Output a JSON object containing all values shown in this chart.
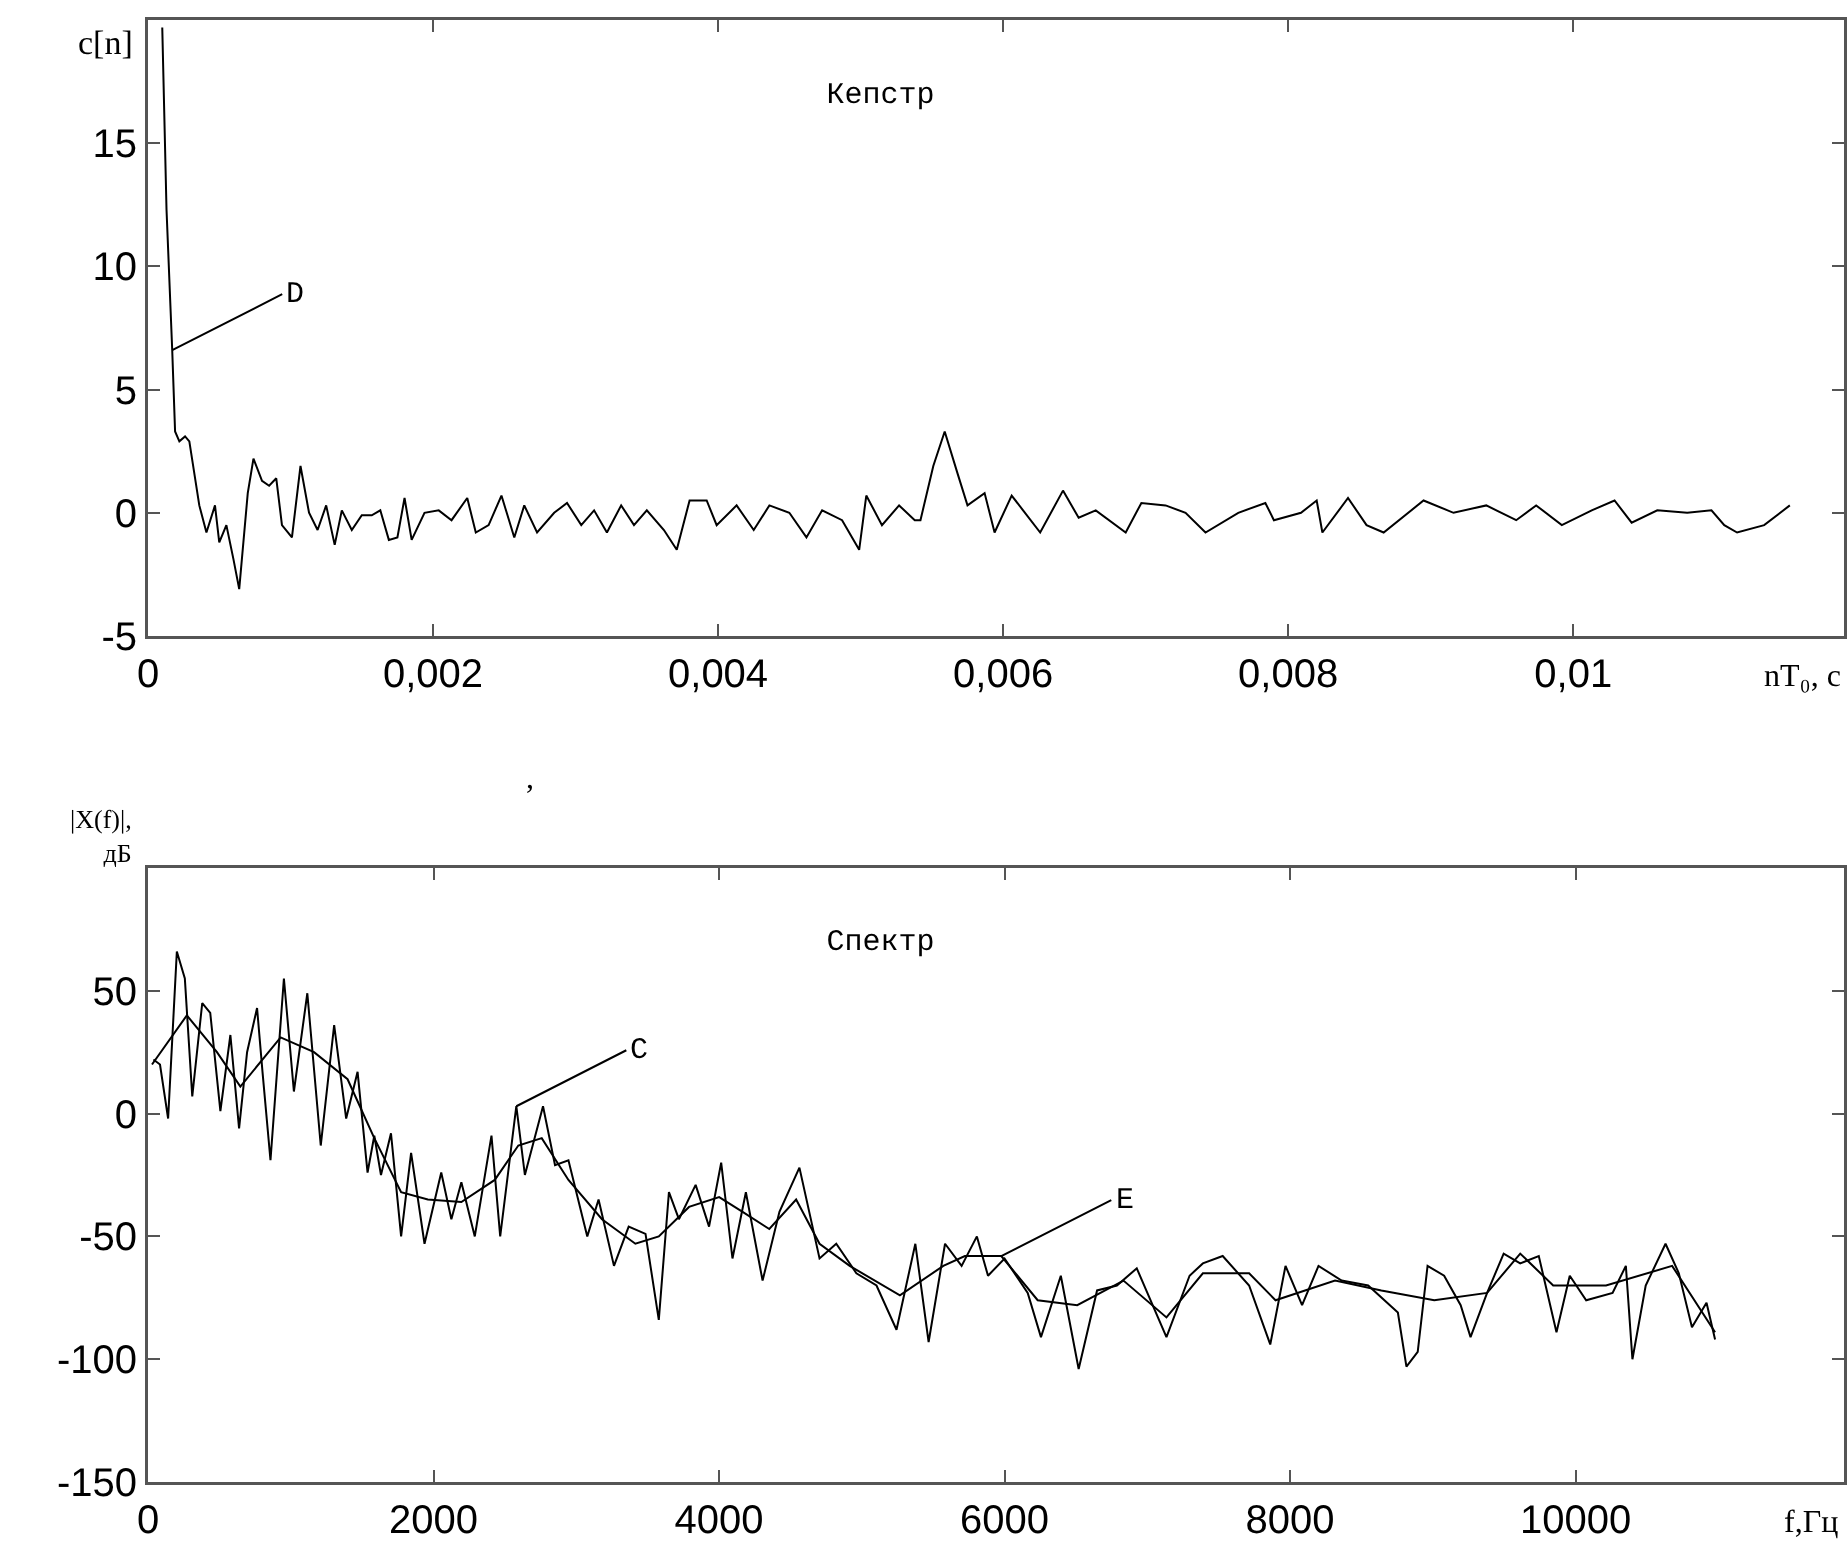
{
  "chart_data": [
    {
      "type": "line",
      "title": "Кепстр",
      "xlabel": "nT₀, с",
      "ylabel": "c[n]",
      "xlim": [
        0,
        0.0119
      ],
      "ylim": [
        -5,
        20
      ],
      "xticks": [
        0,
        {
          "value": 0.002,
          "label": "0,002"
        },
        {
          "value": 0.004,
          "label": "0,004"
        },
        {
          "value": 0.006,
          "label": "0,006"
        },
        {
          "value": 0.008,
          "label": "0,008"
        },
        {
          "value": 0.01,
          "label": "0,01"
        }
      ],
      "yticks": [
        -5,
        0,
        5,
        10,
        15
      ],
      "grid": false,
      "annotations": [
        {
          "text": "D",
          "x": 0.00017,
          "y": 6.6
        }
      ],
      "series": [
        {
          "color": "#000000",
          "x": [
            0.0001,
            0.00013,
            0.00017,
            0.00019,
            0.00022,
            0.00026,
            0.00029,
            0.00036,
            0.00041,
            0.00047,
            0.0005,
            0.00055,
            0.0006,
            0.00064,
            0.0007,
            0.00074,
            0.0008,
            0.00085,
            0.0009,
            0.00094,
            0.00101,
            0.00107,
            0.00113,
            0.00119,
            0.00125,
            0.00131,
            0.00136,
            0.00143,
            0.0015,
            0.00157,
            0.00163,
            0.00169,
            0.00175,
            0.0018,
            0.00185,
            0.00194,
            0.00204,
            0.00213,
            0.00224,
            0.0023,
            0.00239,
            0.00248,
            0.00257,
            0.00264,
            0.00273,
            0.00285,
            0.00294,
            0.00304,
            0.00313,
            0.00322,
            0.00332,
            0.00341,
            0.0035,
            0.00362,
            0.00371,
            0.0038,
            0.00392,
            0.00399,
            0.00413,
            0.00425,
            0.00436,
            0.0045,
            0.00462,
            0.00473,
            0.00487,
            0.00499,
            0.00504,
            0.00515,
            0.00527,
            0.00538,
            0.00542,
            0.00551,
            0.00559,
            0.00568,
            0.00575,
            0.00587,
            0.00594,
            0.00606,
            0.00614,
            0.00626,
            0.00642,
            0.00653,
            0.00665,
            0.00686,
            0.00697,
            0.00714,
            0.00728,
            0.00742,
            0.00765,
            0.00784,
            0.0079,
            0.00809,
            0.0082,
            0.00824,
            0.00842,
            0.00855,
            0.00867,
            0.00895,
            0.00916,
            0.00939,
            0.0096,
            0.00974,
            0.00992,
            0.01013,
            0.01029,
            0.01041,
            0.01059,
            0.0108,
            0.01097,
            0.01106,
            0.01115,
            0.01134,
            0.01152
          ],
          "values": [
            19.7,
            12.3,
            6.6,
            3.3,
            2.9,
            3.1,
            2.9,
            0.3,
            -0.8,
            0.3,
            -1.2,
            -0.5,
            -1.9,
            -3.1,
            0.8,
            2.2,
            1.3,
            1.1,
            1.4,
            -0.5,
            -1.0,
            1.9,
            0,
            -0.7,
            0.3,
            -1.3,
            0.1,
            -0.7,
            -0.1,
            -0.1,
            0.1,
            -1.1,
            -1.0,
            0.6,
            -1.1,
            0,
            0.1,
            -0.3,
            0.6,
            -0.8,
            -0.5,
            0.7,
            -1.0,
            0.3,
            -0.8,
            0,
            0.4,
            -0.5,
            0.1,
            -0.8,
            0.3,
            -0.5,
            0.1,
            -0.7,
            -1.5,
            0.5,
            0.5,
            -0.5,
            0.3,
            -0.7,
            0.3,
            0,
            -1.0,
            0.1,
            -0.3,
            -1.5,
            0.7,
            -0.5,
            0.3,
            -0.3,
            -0.3,
            1.9,
            3.3,
            1.6,
            0.3,
            0.8,
            -0.8,
            0.7,
            0.1,
            -0.8,
            0.9,
            -0.2,
            0.1,
            -0.8,
            0.4,
            0.3,
            0,
            -0.8,
            0,
            0.4,
            -0.3,
            0,
            0.5,
            -0.8,
            0.6,
            -0.5,
            -0.8,
            0.5,
            0,
            0.3,
            -0.3,
            0.3,
            -0.5,
            0.1,
            0.5,
            -0.4,
            0.1,
            0,
            0.1,
            -0.5,
            -0.8,
            -0.5,
            0.3
          ]
        }
      ]
    },
    {
      "type": "line",
      "title": "Спектр",
      "xlabel": "f,Гц",
      "ylabel": "|X(f)|,\nдБ",
      "xlim": [
        0,
        11880
      ],
      "ylim": [
        -150,
        100
      ],
      "xticks": [
        0,
        2000,
        4000,
        6000,
        8000,
        10000
      ],
      "yticks": [
        -150,
        -100,
        -50,
        0,
        50
      ],
      "grid": false,
      "annotations": [
        ",",
        {
          "text": "C",
          "x": 2580,
          "y": 3
        },
        {
          "text": "E",
          "x": 5977,
          "y": -58
        }
      ],
      "series": [
        {
          "color": "#000000",
          "x": [
            38,
            84,
            141,
            202,
            258,
            310,
            380,
            436,
            507,
            577,
            638,
            694,
            764,
            802,
            858,
            952,
            1022,
            1116,
            1210,
            1304,
            1388,
            1468,
            1538,
            1585,
            1632,
            1702,
            1773,
            1843,
            1937,
            2054,
            2125,
            2195,
            2289,
            2406,
            2467,
            2580,
            2640,
            2767,
            2851,
            2945,
            3077,
            3156,
            3264,
            3367,
            3485,
            3578,
            3649,
            3719,
            3836,
            3930,
            4015,
            4094,
            4188,
            4305,
            4423,
            4563,
            4704,
            4821,
            4962,
            5103,
            5243,
            5375,
            5468,
            5583,
            5699,
            5806,
            5884,
            6000,
            6162,
            6255,
            6394,
            6519,
            6648,
            6787,
            6926,
            7134,
            7296,
            7389,
            7528,
            7713,
            7861,
            7968,
            8084,
            8199,
            8361,
            8547,
            8755,
            8815,
            8894,
            8963,
            9079,
            9195,
            9264,
            9380,
            9496,
            9612,
            9742,
            9866,
            9959,
            10074,
            10259,
            10352,
            10398,
            10491,
            10630,
            10723,
            10815,
            10917,
            10977
          ],
          "values": [
            22,
            20,
            -2,
            66,
            55,
            7,
            45,
            41,
            1,
            32,
            -6,
            25,
            43,
            17,
            -19,
            55,
            9,
            49,
            -13,
            36,
            -2,
            17,
            -24,
            -9,
            -25,
            -8,
            -50,
            -16,
            -53,
            -24,
            -43,
            -28,
            -50,
            -9,
            -50,
            3,
            -25,
            3,
            -21,
            -19,
            -50,
            -35,
            -62,
            -46,
            -49,
            -84,
            -32,
            -43,
            -29,
            -46,
            -20,
            -59,
            -32,
            -68,
            -40,
            -22,
            -59,
            -53,
            -65,
            -70,
            -88,
            -53,
            -93,
            -53,
            -62,
            -50,
            -66,
            -59,
            -73,
            -91,
            -66,
            -104,
            -72,
            -70,
            -63,
            -91,
            -66,
            -61,
            -58,
            -70,
            -94,
            -62,
            -78,
            -62,
            -68,
            -70,
            -81,
            -103,
            -97,
            -62,
            -66,
            -78,
            -91,
            -73,
            -57,
            -61,
            -58,
            -89,
            -66,
            -76,
            -73,
            -62,
            -100,
            -70,
            -53,
            -65,
            -87,
            -77,
            -92
          ]
        },
        {
          "color": "#000000",
          "x": [
            28,
            272,
            483,
            647,
            929,
            1163,
            1398,
            1585,
            1773,
            1960,
            2195,
            2429,
            2594,
            2758,
            2945,
            3180,
            3414,
            3578,
            3790,
            4001,
            4165,
            4352,
            4540,
            4704,
            4915,
            5267,
            5571,
            5722,
            5977,
            6232,
            6509,
            6833,
            7134,
            7389,
            7713,
            7898,
            8315,
            8639,
            9010,
            9380,
            9612,
            9843,
            10213,
            10676,
            10977
          ],
          "values": [
            20,
            40,
            25,
            11,
            31,
            25,
            14,
            -10,
            -32,
            -35,
            -36,
            -27,
            -13,
            -10,
            -27,
            -43,
            -53,
            -50,
            -38,
            -34,
            -40,
            -47,
            -35,
            -53,
            -62,
            -74,
            -62,
            -58,
            -58,
            -76,
            -78,
            -68,
            -83,
            -65,
            -65,
            -76,
            -68,
            -72,
            -76,
            -73,
            -57,
            -70,
            -70,
            -62,
            -89
          ]
        }
      ]
    }
  ]
}
